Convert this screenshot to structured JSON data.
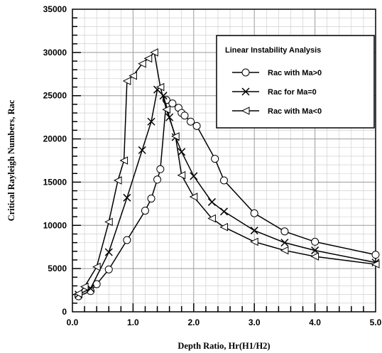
{
  "chart_data": {
    "type": "line",
    "xlabel": "Depth Ratio, Hr(H1/H2)",
    "ylabel": "Critical Rayleigh Numbers, Rac",
    "xlim": [
      0,
      5
    ],
    "ylim": [
      0,
      35000
    ],
    "x_ticks": [
      "0.0",
      "1.0",
      "2.0",
      "3.0",
      "4.0",
      "5.0"
    ],
    "y_ticks": [
      "0",
      "5000",
      "10000",
      "15000",
      "20000",
      "25000",
      "30000",
      "35000"
    ],
    "grid": true,
    "legend": {
      "title": "Linear Instability Analysis",
      "placement": "top-right"
    },
    "series": [
      {
        "name": "Rac with Ma>0",
        "marker": "circle",
        "color": "#000000",
        "x": [
          0.1,
          0.3,
          0.4,
          0.6,
          0.9,
          1.2,
          1.3,
          1.4,
          1.45,
          1.55,
          1.65,
          1.75,
          1.8,
          1.85,
          1.95,
          2.05,
          2.35,
          2.5,
          3.0,
          3.5,
          4.0,
          5.0
        ],
        "y": [
          1800,
          2400,
          3200,
          4900,
          8300,
          11700,
          13100,
          15300,
          16500,
          24500,
          24100,
          23600,
          23000,
          22700,
          22000,
          21500,
          17700,
          15200,
          11400,
          9300,
          8100,
          6600
        ]
      },
      {
        "name": "Rac for Ma=0",
        "marker": "x",
        "color": "#000000",
        "x": [
          0.1,
          0.3,
          0.6,
          0.9,
          1.15,
          1.3,
          1.4,
          1.5,
          1.6,
          1.7,
          1.8,
          2.0,
          2.3,
          2.5,
          3.0,
          3.5,
          4.0,
          5.0
        ],
        "y": [
          2000,
          2700,
          6900,
          13200,
          18700,
          22000,
          25700,
          25000,
          22500,
          20200,
          18500,
          15700,
          12700,
          11600,
          9400,
          8000,
          7100,
          5700
        ]
      },
      {
        "name": "Rac with Ma<0",
        "marker": "triangle-left",
        "color": "#000000",
        "x": [
          0.1,
          0.2,
          0.4,
          0.6,
          0.75,
          0.85,
          0.9,
          1.0,
          1.15,
          1.25,
          1.35,
          1.45,
          1.55,
          1.7,
          1.8,
          2.0,
          2.3,
          2.5,
          3.0,
          3.5,
          4.0,
          5.0
        ],
        "y": [
          2100,
          2900,
          5200,
          10400,
          15200,
          17500,
          26700,
          27300,
          28700,
          29300,
          30000,
          26000,
          23400,
          20300,
          15800,
          13300,
          10800,
          9800,
          8100,
          7100,
          6400,
          5500
        ]
      }
    ]
  }
}
